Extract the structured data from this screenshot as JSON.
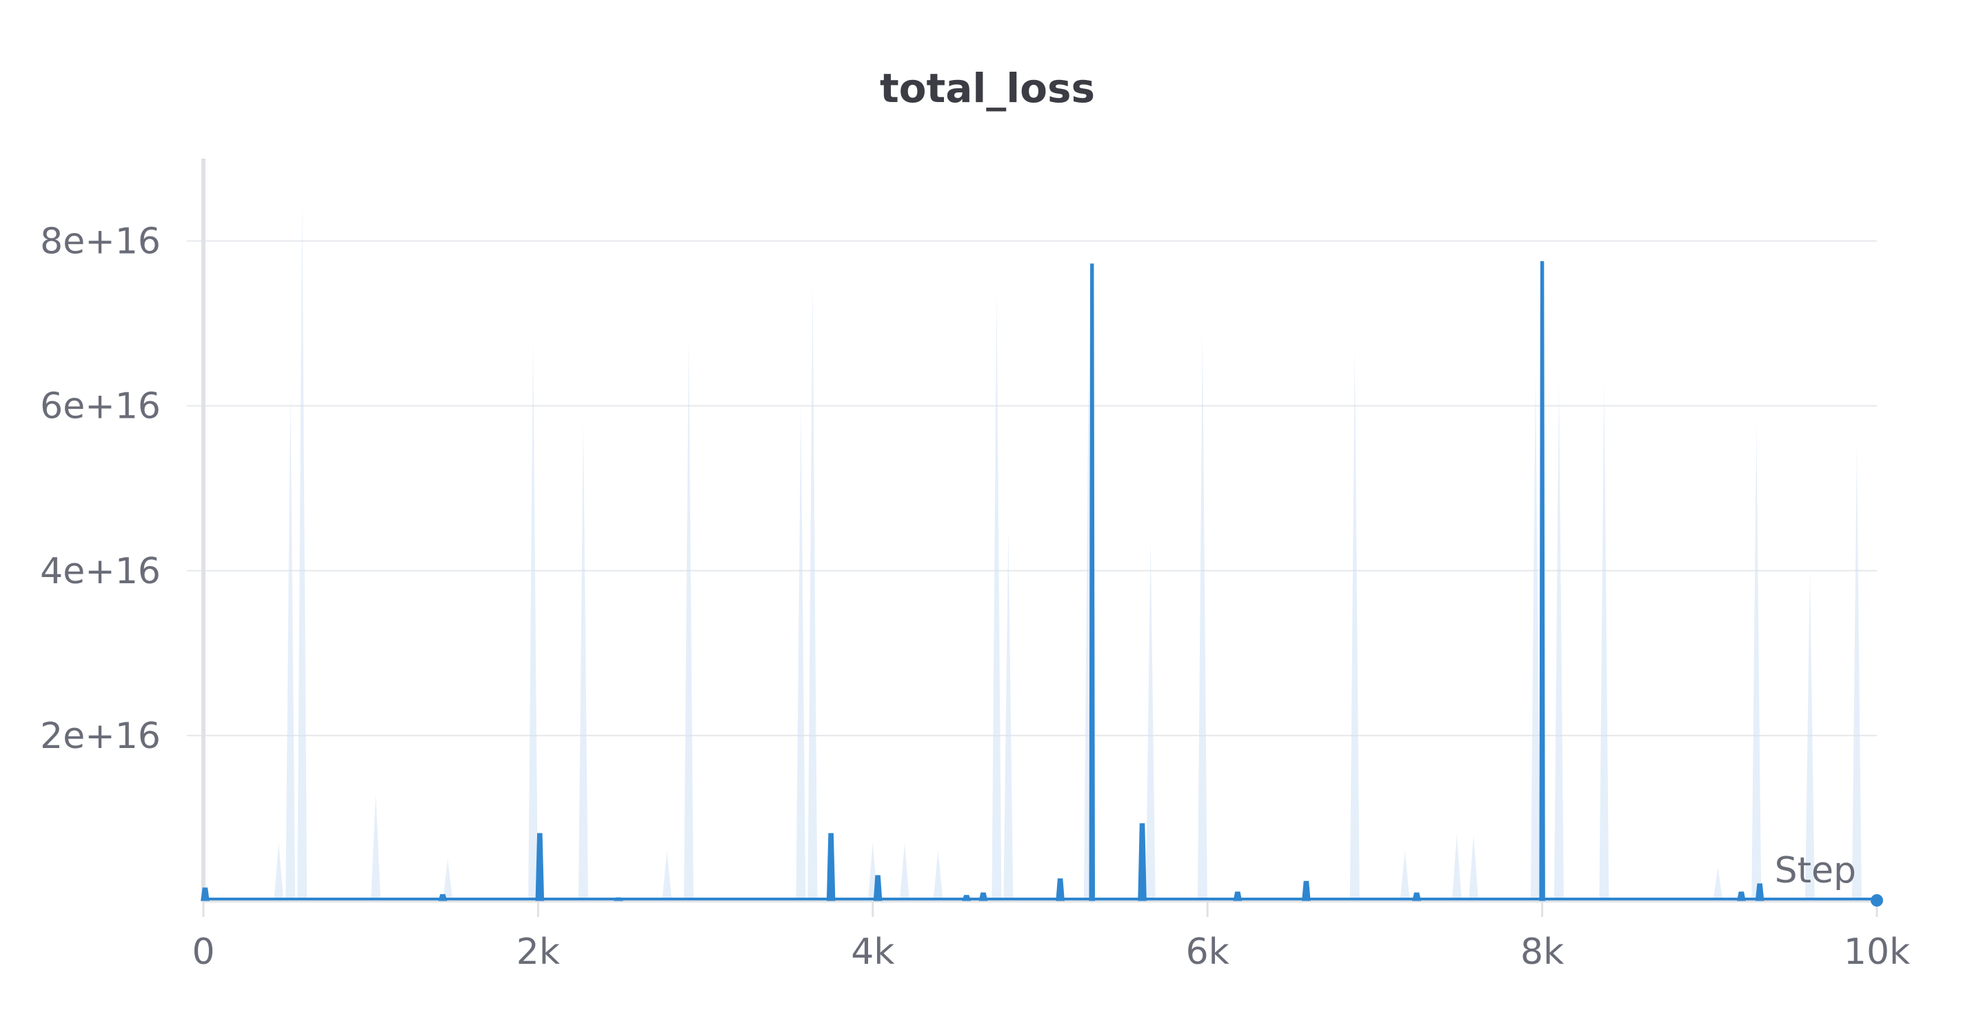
{
  "chart_data": {
    "type": "line",
    "title": "total_loss",
    "xlabel": "Step",
    "ylabel": "",
    "xlim": [
      0,
      10000
    ],
    "ylim": [
      0,
      9e+16
    ],
    "x_ticks": [
      {
        "value": 0,
        "label": "0"
      },
      {
        "value": 2000,
        "label": "2k"
      },
      {
        "value": 4000,
        "label": "4k"
      },
      {
        "value": 6000,
        "label": "6k"
      },
      {
        "value": 8000,
        "label": "8k"
      },
      {
        "value": 10000,
        "label": "10k"
      }
    ],
    "y_ticks": [
      {
        "value": 2e+16,
        "label": "2e+16"
      },
      {
        "value": 4e+16,
        "label": "4e+16"
      },
      {
        "value": 6e+16,
        "label": "6e+16"
      },
      {
        "value": 8e+16,
        "label": "8e+16"
      }
    ],
    "grid": true,
    "colors": {
      "line": "#2f86d0",
      "raw": "#cfe2f5",
      "grid": "#e6e8ec",
      "axis": "#dfe1e5"
    },
    "series": [
      {
        "spikes": [
          {
            "x": 10,
            "y": 1500000000000000.0
          },
          {
            "x": 1430,
            "y": 700000000000000.0
          },
          {
            "x": 2010,
            "y": 8100000000000000.0
          },
          {
            "x": 2480,
            "y": 300000000000000.0
          },
          {
            "x": 3750,
            "y": 8100000000000000.0
          },
          {
            "x": 4030,
            "y": 3000000000000000.0
          },
          {
            "x": 4560,
            "y": 600000000000000.0
          },
          {
            "x": 4660,
            "y": 900000000000000.0
          },
          {
            "x": 5120,
            "y": 2600000000000000.0
          },
          {
            "x": 5310,
            "y": 7.72e+16
          },
          {
            "x": 5610,
            "y": 9300000000000000.0
          },
          {
            "x": 6180,
            "y": 1000000000000000.0
          },
          {
            "x": 6590,
            "y": 2300000000000000.0
          },
          {
            "x": 7250,
            "y": 900000000000000.0
          },
          {
            "x": 8000,
            "y": 7.75e+16
          },
          {
            "x": 9190,
            "y": 1000000000000000.0
          },
          {
            "x": 9300,
            "y": 2000000000000000.0
          }
        ]
      }
    ],
    "raw_spikes": [
      {
        "x": 450,
        "y": 7000000000000000.0
      },
      {
        "x": 520,
        "y": 6.2e+16
      },
      {
        "x": 590,
        "y": 8.5e+16
      },
      {
        "x": 1030,
        "y": 1.3e+16
      },
      {
        "x": 1460,
        "y": 5000000000000000.0
      },
      {
        "x": 1970,
        "y": 6.8e+16
      },
      {
        "x": 2270,
        "y": 5.8e+16
      },
      {
        "x": 2770,
        "y": 6000000000000000.0
      },
      {
        "x": 2900,
        "y": 6.8e+16
      },
      {
        "x": 3570,
        "y": 6e+16
      },
      {
        "x": 3640,
        "y": 7.5e+16
      },
      {
        "x": 4000,
        "y": 7000000000000000.0
      },
      {
        "x": 4190,
        "y": 7000000000000000.0
      },
      {
        "x": 4390,
        "y": 6000000000000000.0
      },
      {
        "x": 4740,
        "y": 7.4e+16
      },
      {
        "x": 4810,
        "y": 4.5e+16
      },
      {
        "x": 5290,
        "y": 6.5e+16
      },
      {
        "x": 5660,
        "y": 4.4e+16
      },
      {
        "x": 5970,
        "y": 6.9e+16
      },
      {
        "x": 6880,
        "y": 6.7e+16
      },
      {
        "x": 7180,
        "y": 6000000000000000.0
      },
      {
        "x": 7490,
        "y": 8000000000000000.0
      },
      {
        "x": 7590,
        "y": 8000000000000000.0
      },
      {
        "x": 7960,
        "y": 6.4e+16
      },
      {
        "x": 8100,
        "y": 6.3e+16
      },
      {
        "x": 8370,
        "y": 6.3e+16
      },
      {
        "x": 9050,
        "y": 4000000000000000.0
      },
      {
        "x": 9280,
        "y": 5.8e+16
      },
      {
        "x": 9600,
        "y": 4e+16
      },
      {
        "x": 9880,
        "y": 5.5e+16
      }
    ]
  }
}
